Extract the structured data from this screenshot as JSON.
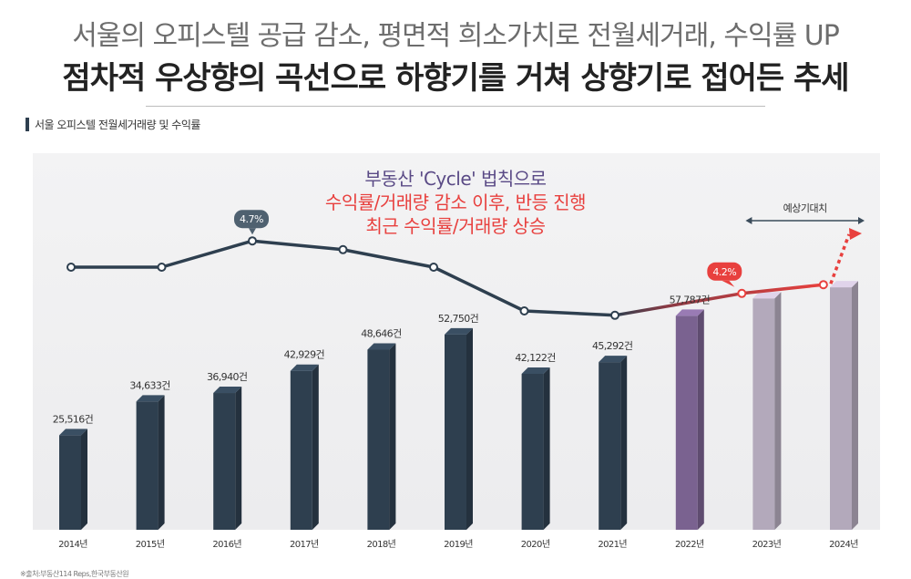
{
  "headline": {
    "sub": "서울의 오피스텔 공급 감소, 평면적 희소가치로 전월세거래, 수익률 UP",
    "main": "점차적 우상향의 곡선으로 하향기를 거쳐 상향기로 접어든 추세"
  },
  "chart_label": "서울 오피스텔 전월세거래량 및 수익률",
  "source": "※출처:부동산114 Reps,한국부동산원",
  "annotation": {
    "line1": "부동산 'Cycle' 법칙으로",
    "line2": "수익률/거래량 감소 이후, 반등 진행",
    "line3": "최근 수익률/거래량 상승"
  },
  "forecast_label": "예상기대치",
  "colors": {
    "bar_main": "#2e3f4f",
    "bar_highlight": "#7a6290",
    "bar_forecast": "#b3a9bb",
    "line": "#2e3f4f",
    "line_rising": "#e8403e",
    "annotation_purple": "#5a4a86",
    "annotation_red": "#e8403e",
    "panel_background": "#f1f1f2"
  },
  "chart_data": {
    "type": "bar",
    "categories": [
      "2014년",
      "2015년",
      "2016년",
      "2017년",
      "2018년",
      "2019년",
      "2020년",
      "2021년",
      "2022년",
      "2023년",
      "2024년"
    ],
    "series": [
      {
        "values": [
          25516,
          34633,
          36940,
          42929,
          48646,
          52750,
          42122,
          45292,
          57787,
          62500,
          65500
        ],
        "data_labels": [
          "25,516건",
          "34,633건",
          "36,940건",
          "42,929건",
          "48,646건",
          "52,750건",
          "42,122건",
          "45,292건",
          "57,787건",
          "",
          ""
        ],
        "forecast_from_index": 9
      }
    ],
    "line": {
      "values": [
        4.4,
        4.4,
        4.7,
        4.6,
        4.4,
        3.9,
        3.85,
        null,
        4.1,
        4.2,
        null
      ],
      "x_index": [
        0,
        1,
        2,
        3,
        4,
        5,
        6,
        null,
        7.4,
        8.3,
        null
      ],
      "point_labels": [
        {
          "category": "2016년",
          "text": "4.7%"
        },
        {
          "category": "2022년",
          "text": "4.2%"
        }
      ],
      "forecast_arrow": true
    }
  }
}
